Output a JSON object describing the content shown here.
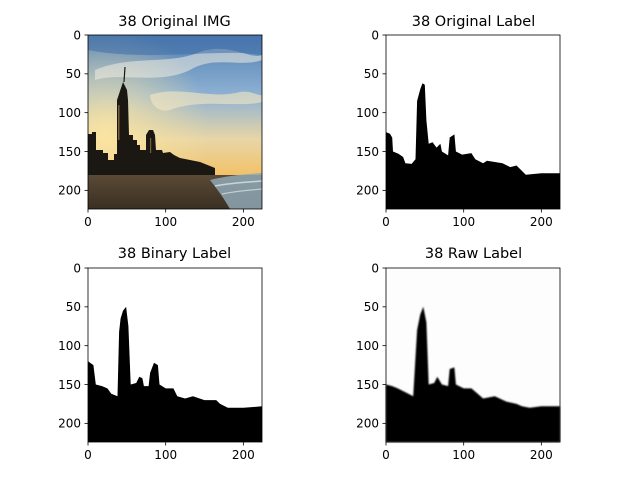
{
  "chart_data": [
    {
      "type": "image",
      "title": "38 Original IMG",
      "xlim": [
        0,
        224
      ],
      "ylim": [
        224,
        0
      ],
      "xticks": [
        0,
        100,
        200
      ],
      "yticks": [
        0,
        50,
        100,
        150,
        200
      ],
      "xtick_labels": [
        "0",
        "100",
        "200"
      ],
      "ytick_labels": [
        "0",
        "50",
        "100",
        "150",
        "200"
      ],
      "content": "photo"
    },
    {
      "type": "image",
      "title": "38 Original Label",
      "xlim": [
        0,
        224
      ],
      "ylim": [
        224,
        0
      ],
      "xticks": [
        0,
        100,
        200
      ],
      "yticks": [
        0,
        50,
        100,
        150,
        200
      ],
      "xtick_labels": [
        "0",
        "100",
        "200"
      ],
      "ytick_labels": [
        "0",
        "50",
        "100",
        "150",
        "200"
      ],
      "content": "mask",
      "mask_color": "#000000",
      "skyline": [
        [
          0,
          125
        ],
        [
          5,
          127
        ],
        [
          8,
          132
        ],
        [
          9,
          150
        ],
        [
          16,
          153
        ],
        [
          22,
          157
        ],
        [
          25,
          165
        ],
        [
          33,
          166
        ],
        [
          38,
          160
        ],
        [
          40,
          85
        ],
        [
          44,
          70
        ],
        [
          47,
          62
        ],
        [
          50,
          64
        ],
        [
          52,
          110
        ],
        [
          55,
          140
        ],
        [
          60,
          138
        ],
        [
          65,
          145
        ],
        [
          70,
          140
        ],
        [
          72,
          150
        ],
        [
          80,
          155
        ],
        [
          82,
          132
        ],
        [
          88,
          128
        ],
        [
          90,
          150
        ],
        [
          98,
          154
        ],
        [
          110,
          152
        ],
        [
          115,
          160
        ],
        [
          125,
          165
        ],
        [
          130,
          162
        ],
        [
          150,
          165
        ],
        [
          160,
          170
        ],
        [
          168,
          168
        ],
        [
          175,
          175
        ],
        [
          180,
          180
        ],
        [
          200,
          178
        ],
        [
          224,
          178
        ]
      ]
    },
    {
      "type": "image",
      "title": "38 Binary Label",
      "xlim": [
        0,
        224
      ],
      "ylim": [
        224,
        0
      ],
      "xticks": [
        0,
        100,
        200
      ],
      "yticks": [
        0,
        50,
        100,
        150,
        200
      ],
      "xtick_labels": [
        "0",
        "100",
        "200"
      ],
      "ytick_labels": [
        "0",
        "50",
        "100",
        "150",
        "200"
      ],
      "content": "mask",
      "mask_color": "#000000",
      "skyline": [
        [
          0,
          120
        ],
        [
          7,
          125
        ],
        [
          10,
          150
        ],
        [
          18,
          152
        ],
        [
          25,
          155
        ],
        [
          30,
          162
        ],
        [
          38,
          165
        ],
        [
          40,
          82
        ],
        [
          42,
          65
        ],
        [
          45,
          55
        ],
        [
          49,
          50
        ],
        [
          52,
          75
        ],
        [
          55,
          150
        ],
        [
          62,
          148
        ],
        [
          66,
          140
        ],
        [
          70,
          142
        ],
        [
          72,
          152
        ],
        [
          78,
          152
        ],
        [
          80,
          135
        ],
        [
          85,
          122
        ],
        [
          90,
          125
        ],
        [
          92,
          150
        ],
        [
          100,
          155
        ],
        [
          110,
          155
        ],
        [
          115,
          165
        ],
        [
          125,
          168
        ],
        [
          135,
          165
        ],
        [
          150,
          170
        ],
        [
          165,
          170
        ],
        [
          170,
          175
        ],
        [
          180,
          180
        ],
        [
          200,
          180
        ],
        [
          224,
          178
        ]
      ]
    },
    {
      "type": "image",
      "title": "38 Raw Label",
      "xlim": [
        0,
        224
      ],
      "ylim": [
        224,
        0
      ],
      "xticks": [
        0,
        100,
        200
      ],
      "yticks": [
        0,
        50,
        100,
        150,
        200
      ],
      "xtick_labels": [
        "0",
        "100",
        "200"
      ],
      "ytick_labels": [
        "0",
        "50",
        "100",
        "150",
        "200"
      ],
      "content": "mask",
      "mask_color": "#000000",
      "soft": true,
      "skyline": [
        [
          0,
          150
        ],
        [
          8,
          152
        ],
        [
          15,
          155
        ],
        [
          25,
          160
        ],
        [
          35,
          165
        ],
        [
          40,
          80
        ],
        [
          44,
          60
        ],
        [
          48,
          50
        ],
        [
          52,
          70
        ],
        [
          55,
          150
        ],
        [
          62,
          148
        ],
        [
          66,
          140
        ],
        [
          72,
          150
        ],
        [
          80,
          152
        ],
        [
          82,
          130
        ],
        [
          88,
          128
        ],
        [
          90,
          150
        ],
        [
          100,
          155
        ],
        [
          110,
          155
        ],
        [
          118,
          162
        ],
        [
          125,
          168
        ],
        [
          140,
          165
        ],
        [
          155,
          172
        ],
        [
          168,
          175
        ],
        [
          175,
          178
        ],
        [
          185,
          180
        ],
        [
          200,
          178
        ],
        [
          224,
          178
        ]
      ]
    }
  ]
}
